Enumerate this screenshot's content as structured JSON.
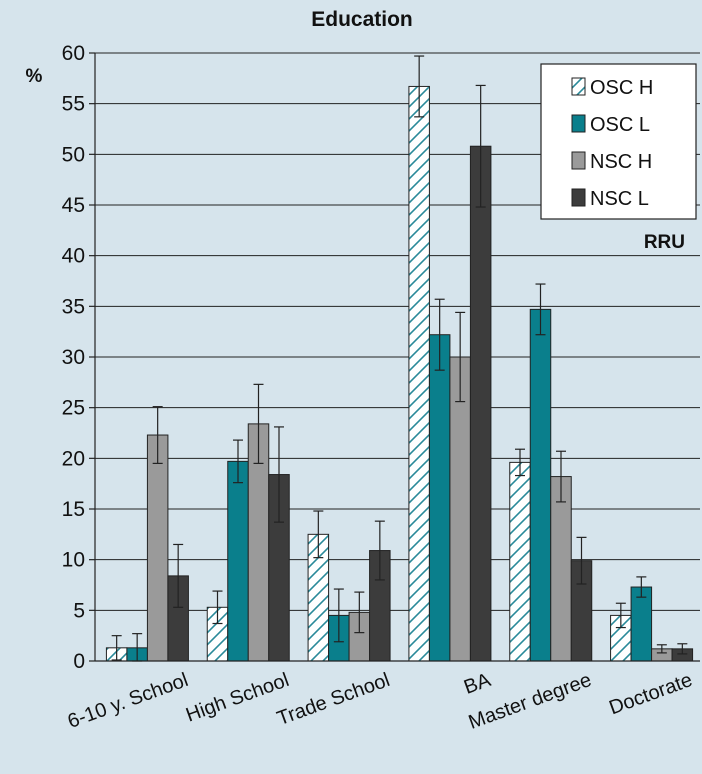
{
  "chart_data": {
    "type": "bar",
    "title": "Education",
    "y_unit_label": "%",
    "annotation": "RRU",
    "ylim": [
      0,
      60
    ],
    "ytick_step": 5,
    "grid": true,
    "legend_position": "top-right",
    "categories": [
      "6-10 y. School",
      "High School",
      "Trade School",
      "BA",
      "Master degree",
      "Doctorate"
    ],
    "series": [
      {
        "name": "OSC H",
        "style": "hatched",
        "color": "#2a8a9a",
        "fill": "#ffffff",
        "values": [
          1.3,
          5.3,
          12.5,
          56.7,
          19.6,
          4.5
        ],
        "errors": [
          1.2,
          1.6,
          2.3,
          3.0,
          1.3,
          1.2
        ]
      },
      {
        "name": "OSC L",
        "style": "solid",
        "color": "#0a7f8c",
        "values": [
          1.3,
          19.7,
          4.5,
          32.2,
          34.7,
          7.3
        ],
        "errors": [
          1.4,
          2.1,
          2.6,
          3.5,
          2.5,
          1.0
        ]
      },
      {
        "name": "NSC H",
        "style": "solid",
        "color": "#9a9a9a",
        "values": [
          22.3,
          23.4,
          4.8,
          30.0,
          18.2,
          1.2
        ],
        "errors": [
          2.8,
          3.9,
          2.0,
          4.4,
          2.5,
          0.4
        ]
      },
      {
        "name": "NSC L",
        "style": "solid",
        "color": "#3c3c3c",
        "values": [
          8.4,
          18.4,
          10.9,
          50.8,
          9.9,
          1.2
        ],
        "errors": [
          3.1,
          4.7,
          2.9,
          6.0,
          2.3,
          0.5
        ]
      }
    ]
  }
}
